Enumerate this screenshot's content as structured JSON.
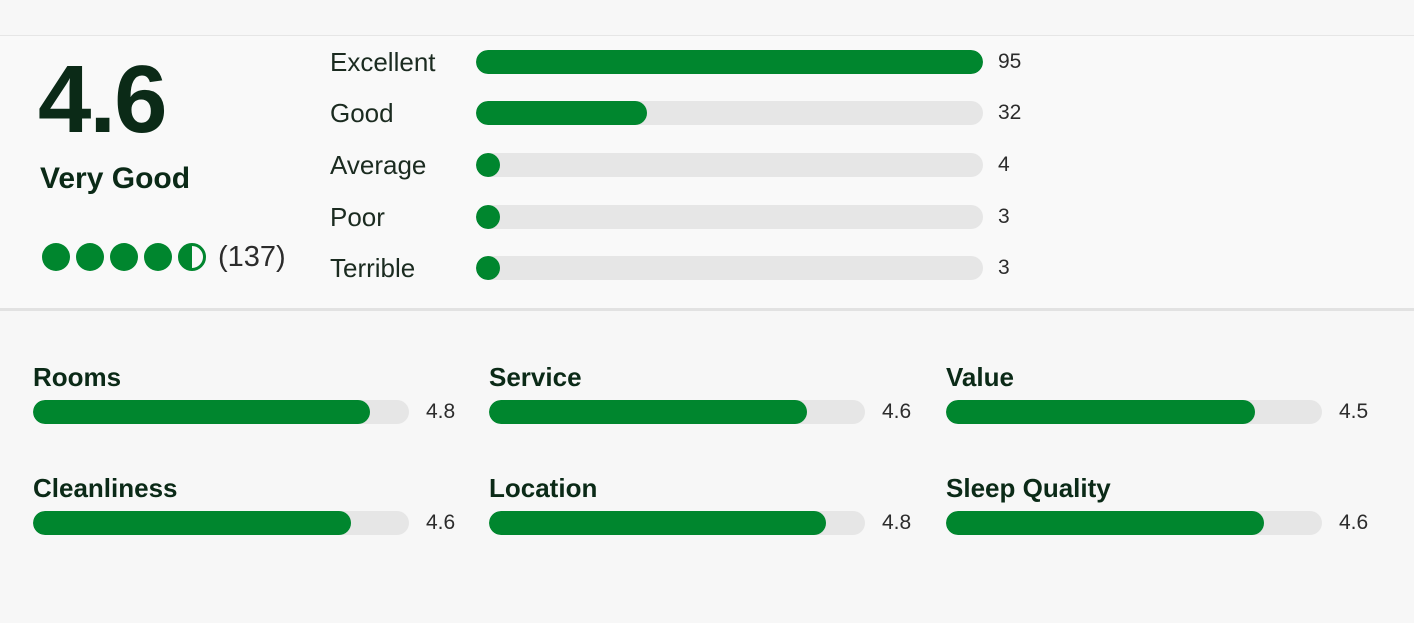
{
  "summary": {
    "score": "4.6",
    "label": "Very Good",
    "review_count": "(137)",
    "bubble_rating": 4.5,
    "bubble_max": 5,
    "accent_color": "#00862e"
  },
  "distribution": [
    {
      "label": "Excellent",
      "count": "95",
      "value": 95
    },
    {
      "label": "Good",
      "count": "32",
      "value": 32
    },
    {
      "label": "Average",
      "count": "4",
      "value": 4
    },
    {
      "label": "Poor",
      "count": "3",
      "value": 3
    },
    {
      "label": "Terrible",
      "count": "3",
      "value": 3
    }
  ],
  "distribution_max": 95,
  "subratings": [
    {
      "label": "Rooms",
      "value": "4.8",
      "score": 4.8
    },
    {
      "label": "Service",
      "value": "4.6",
      "score": 4.6
    },
    {
      "label": "Value",
      "value": "4.5",
      "score": 4.5
    },
    {
      "label": "Cleanliness",
      "value": "4.6",
      "score": 4.6
    },
    {
      "label": "Location",
      "value": "4.8",
      "score": 4.8
    },
    {
      "label": "Sleep Quality",
      "value": "4.6",
      "score": 4.6
    }
  ],
  "subrating_max": 5
}
